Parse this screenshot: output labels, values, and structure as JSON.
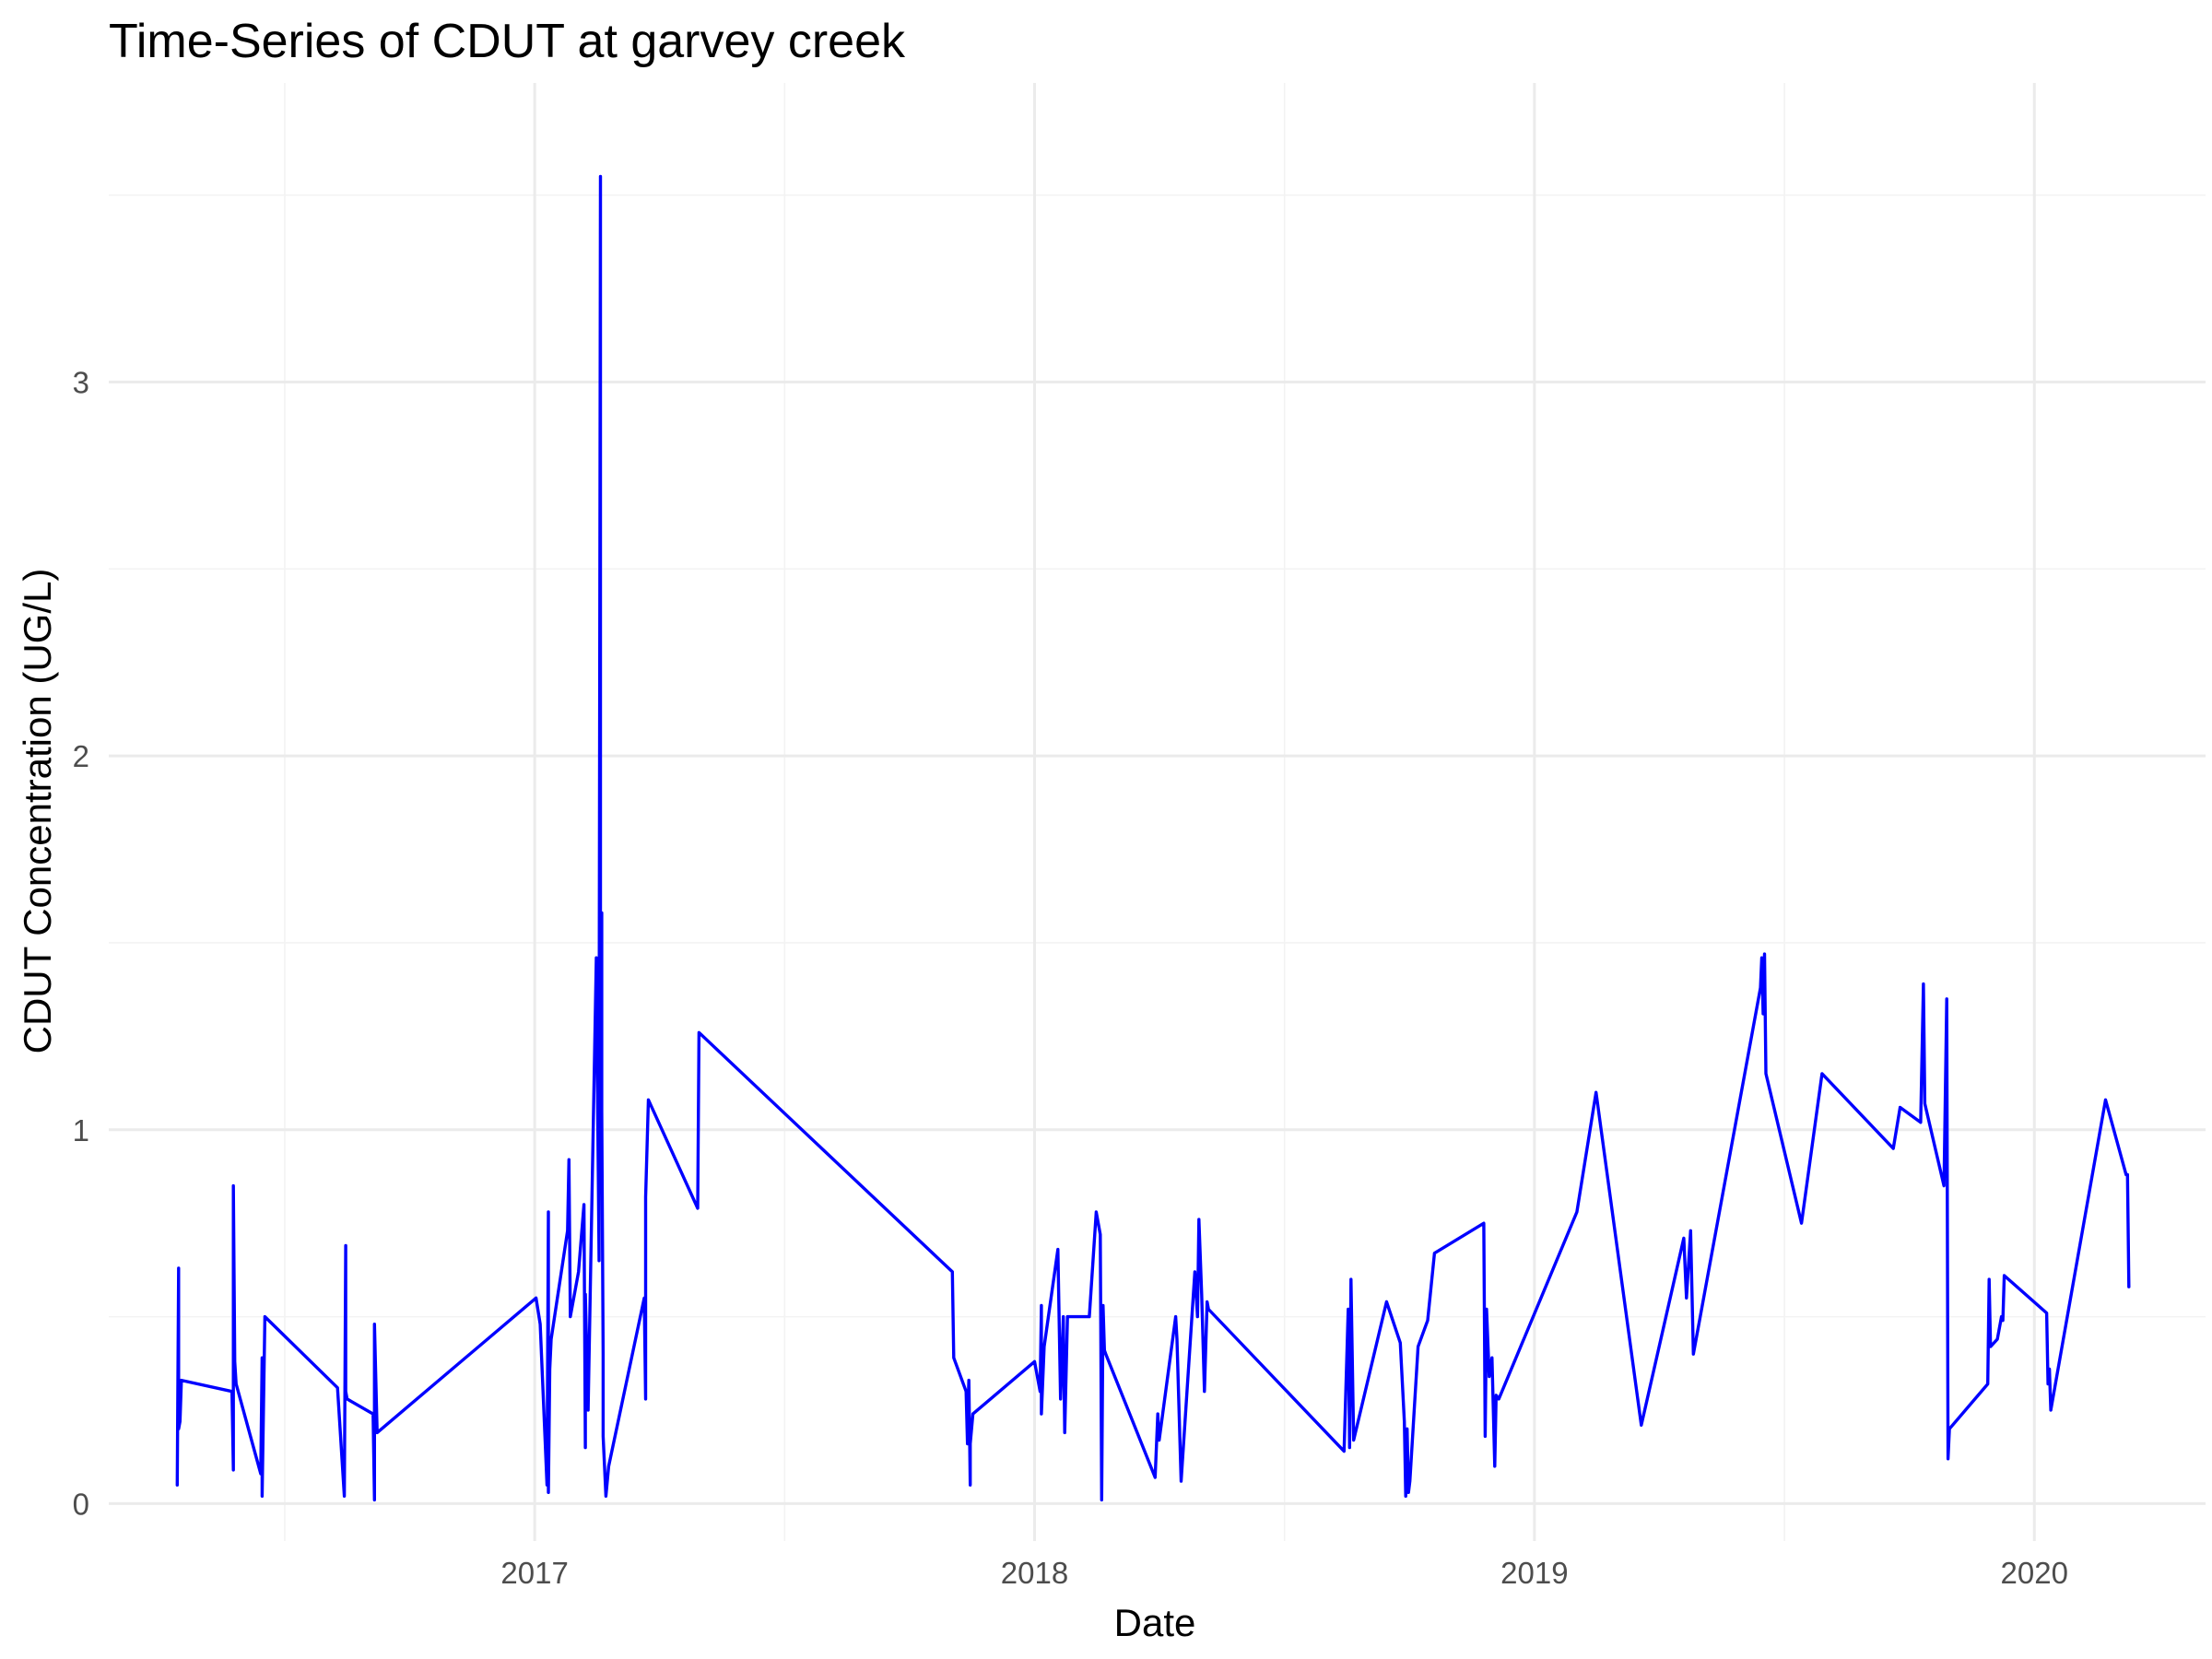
{
  "chart_data": {
    "type": "line",
    "title": "Time-Series of CDUT at garvey creek",
    "xlabel": "Date",
    "ylabel": "CDUT Concentration (UG/L)",
    "x_ticks": [
      {
        "value": "2017-01-01",
        "label": "2017"
      },
      {
        "value": "2018-01-01",
        "label": "2018"
      },
      {
        "value": "2019-01-01",
        "label": "2019"
      },
      {
        "value": "2020-01-01",
        "label": "2020"
      }
    ],
    "y_ticks": [
      0,
      1,
      2,
      3
    ],
    "xlim": [
      "2016-02-25",
      "2020-05-05"
    ],
    "ylim": [
      -0.1,
      3.8
    ],
    "grid": true,
    "color": "#0000FF",
    "series": [
      {
        "x": [
          "2016-04-15",
          "2016-04-16",
          "2016-04-16",
          "2016-04-17",
          "2016-04-18",
          "2016-05-25",
          "2016-05-26",
          "2016-05-26",
          "2016-05-27",
          "2016-05-28",
          "2016-06-15",
          "2016-06-16",
          "2016-06-16",
          "2016-06-18",
          "2016-08-10",
          "2016-08-15",
          "2016-08-16",
          "2016-08-16",
          "2016-08-17",
          "2016-09-05",
          "2016-09-06",
          "2016-09-06",
          "2016-09-08",
          "2017-01-02",
          "2017-01-05",
          "2017-01-10",
          "2017-01-11",
          "2017-01-11",
          "2017-01-12",
          "2017-01-13",
          "2017-01-25",
          "2017-01-26",
          "2017-01-27",
          "2017-02-02",
          "2017-02-06",
          "2017-02-07",
          "2017-02-07",
          "2017-02-09",
          "2017-02-11",
          "2017-02-15",
          "2017-02-17",
          "2017-02-17",
          "2017-02-18",
          "2017-02-18",
          "2017-02-19",
          "2017-02-19",
          "2017-02-20",
          "2017-02-20",
          "2017-02-22",
          "2017-02-24",
          "2017-03-22",
          "2017-03-23",
          "2017-03-23",
          "2017-03-25",
          "2017-04-30",
          "2017-05-01",
          "2017-11-02",
          "2017-11-03",
          "2017-11-12",
          "2017-11-13",
          "2017-11-13",
          "2017-11-14",
          "2017-11-15",
          "2017-11-15",
          "2017-11-17",
          "2018-01-01",
          "2018-01-05",
          "2018-01-06",
          "2018-01-06",
          "2018-01-08",
          "2018-01-18",
          "2018-01-20",
          "2018-01-22",
          "2018-01-23",
          "2018-01-25",
          "2018-02-10",
          "2018-02-15",
          "2018-02-18",
          "2018-02-19",
          "2018-02-20",
          "2018-02-21",
          "2018-02-22",
          "2018-03-30",
          "2018-04-01",
          "2018-04-02",
          "2018-04-14",
          "2018-04-15",
          "2018-04-18",
          "2018-04-28",
          "2018-04-30",
          "2018-05-01",
          "2018-05-03",
          "2018-05-05",
          "2018-05-07",
          "2018-05-08",
          "2018-08-15",
          "2018-08-18",
          "2018-08-19",
          "2018-08-20",
          "2018-08-22",
          "2018-09-15",
          "2018-09-25",
          "2018-09-28",
          "2018-09-29",
          "2018-09-30",
          "2018-10-01",
          "2018-10-02",
          "2018-10-08",
          "2018-10-13",
          "2018-10-15",
          "2018-10-20",
          "2018-11-25",
          "2018-11-26",
          "2018-11-27",
          "2018-11-29",
          "2018-12-01",
          "2018-12-03",
          "2018-12-04",
          "2018-12-06",
          "2019-02-01",
          "2019-02-15",
          "2019-03-20",
          "2019-04-20",
          "2019-04-22",
          "2019-04-25",
          "2019-04-27",
          "2019-06-15",
          "2019-06-16",
          "2019-06-17",
          "2019-06-18",
          "2019-06-19",
          "2019-07-15",
          "2019-07-30",
          "2019-09-20",
          "2019-09-25",
          "2019-10-10",
          "2019-10-12",
          "2019-10-13",
          "2019-10-27",
          "2019-10-29",
          "2019-10-30",
          "2019-10-31",
          "2019-11-28",
          "2019-11-29",
          "2019-11-30",
          "2019-12-05",
          "2019-12-08",
          "2019-12-09",
          "2019-12-10",
          "2020-01-10",
          "2020-01-11",
          "2020-01-12",
          "2020-01-13",
          "2020-02-22",
          "2020-03-08",
          "2020-03-09",
          "2020-03-10"
        ],
        "y": [
          0.05,
          0.63,
          0.2,
          0.22,
          0.33,
          0.3,
          0.09,
          0.85,
          0.38,
          0.32,
          0.08,
          0.39,
          0.02,
          0.5,
          0.31,
          0.02,
          0.69,
          0.3,
          0.28,
          0.24,
          0.01,
          0.48,
          0.19,
          0.55,
          0.48,
          0.05,
          0.78,
          0.03,
          0.36,
          0.44,
          0.73,
          0.92,
          0.5,
          0.62,
          0.8,
          0.15,
          0.56,
          0.25,
          0.66,
          1.46,
          0.65,
          1.1,
          3.55,
          0.98,
          1.58,
          1.05,
          0.4,
          0.18,
          0.02,
          0.1,
          0.55,
          0.28,
          0.82,
          1.08,
          0.79,
          1.26,
          0.62,
          0.39,
          0.3,
          0.16,
          0.22,
          0.33,
          0.05,
          0.16,
          0.24,
          0.38,
          0.3,
          0.53,
          0.24,
          0.42,
          0.68,
          0.28,
          0.5,
          0.19,
          0.5,
          0.5,
          0.78,
          0.72,
          0.01,
          0.53,
          0.41,
          0.4,
          0.07,
          0.24,
          0.17,
          0.5,
          0.44,
          0.06,
          0.62,
          0.5,
          0.76,
          0.56,
          0.3,
          0.54,
          0.52,
          0.14,
          0.52,
          0.15,
          0.6,
          0.17,
          0.54,
          0.43,
          0.22,
          0.02,
          0.2,
          0.03,
          0.06,
          0.42,
          0.47,
          0.49,
          0.67,
          0.75,
          0.18,
          0.52,
          0.34,
          0.39,
          0.1,
          0.29,
          0.28,
          0.78,
          1.1,
          0.21,
          0.71,
          0.55,
          0.73,
          0.4,
          1.38,
          1.46,
          1.31,
          1.47,
          1.15,
          0.75,
          1.15,
          0.95,
          1.06,
          1.02,
          1.39,
          1.07,
          0.85,
          1.35,
          0.12,
          0.2,
          0.32,
          0.6,
          0.42,
          0.44,
          0.5,
          0.49,
          0.61,
          0.51,
          0.32,
          0.36,
          0.25,
          1.08,
          0.88,
          0.88,
          0.58
        ]
      }
    ]
  }
}
